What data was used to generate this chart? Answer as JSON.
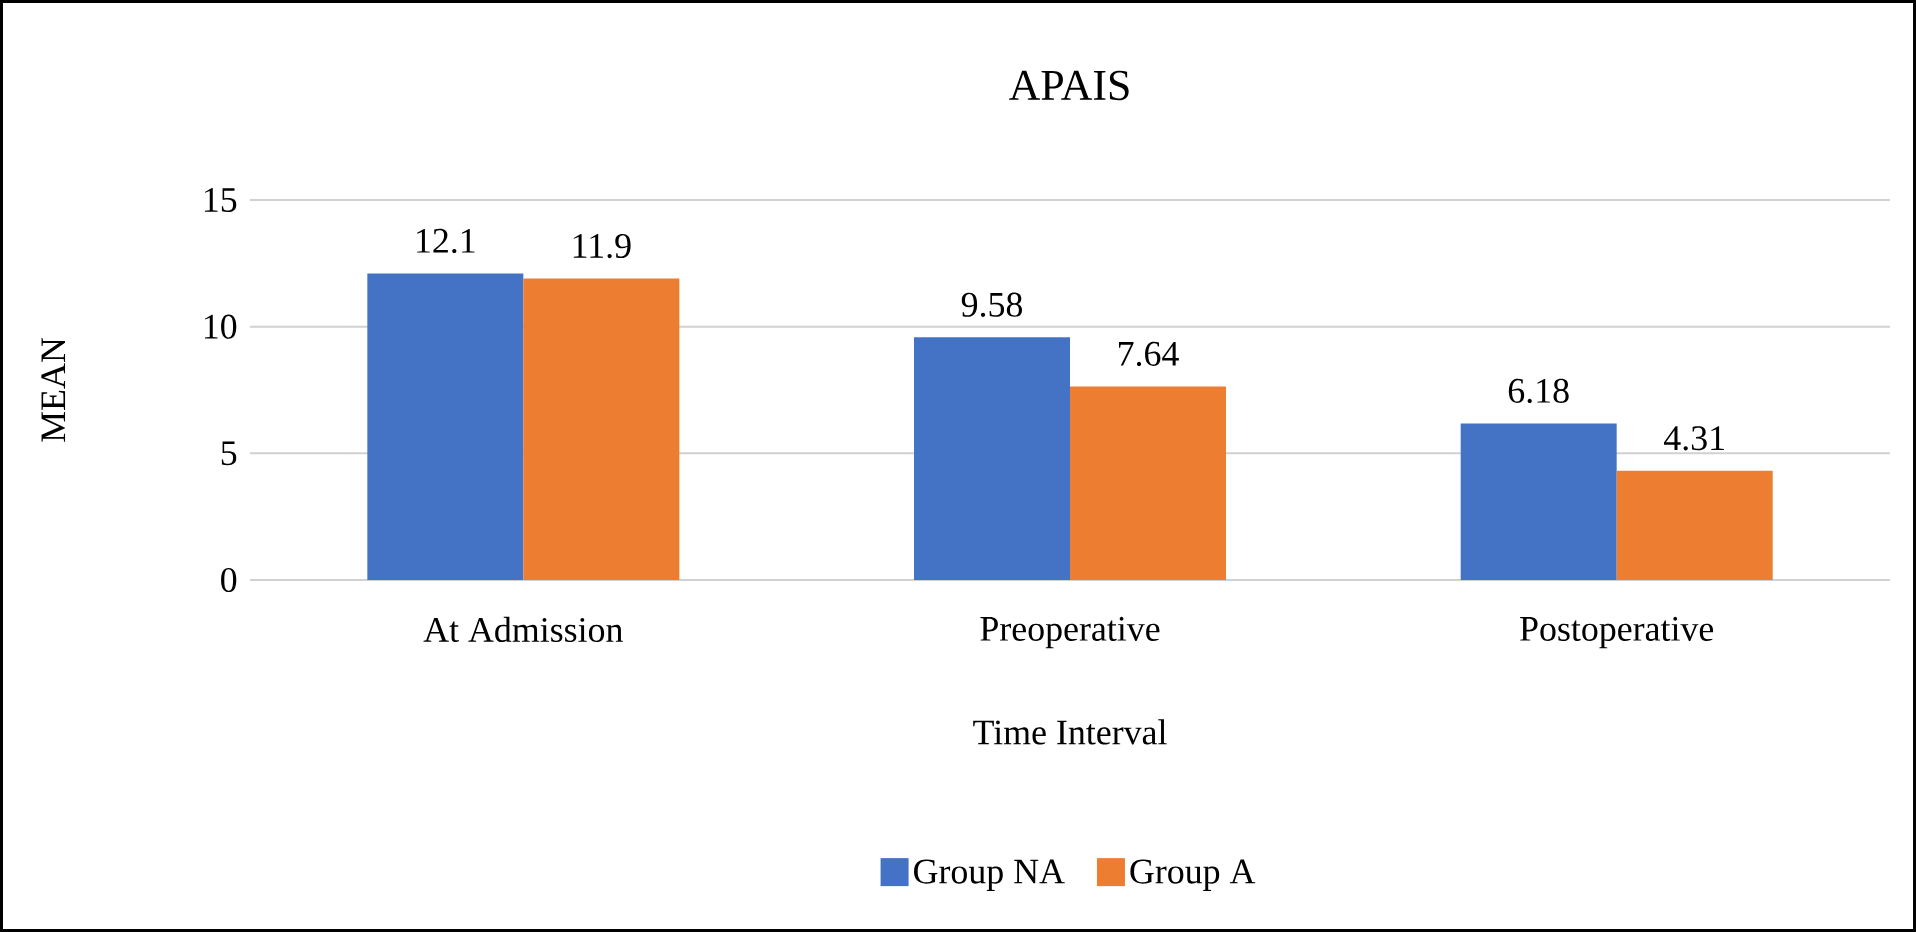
{
  "chart_data": {
    "type": "bar",
    "title": "APAIS",
    "xlabel": "Time Interval",
    "ylabel": "MEAN",
    "categories": [
      "At Admission",
      "Preoperative",
      "Postoperative"
    ],
    "series": [
      {
        "name": "Group NA",
        "color": "#4472c4",
        "values": [
          12.1,
          9.58,
          6.18
        ]
      },
      {
        "name": "Group A",
        "color": "#ed7d31",
        "values": [
          11.9,
          7.64,
          4.31
        ]
      }
    ],
    "ylim": [
      0,
      15
    ],
    "yticks": [
      0,
      5,
      10,
      15
    ],
    "grid": "y",
    "legend": "bottom",
    "data_labels": true
  }
}
